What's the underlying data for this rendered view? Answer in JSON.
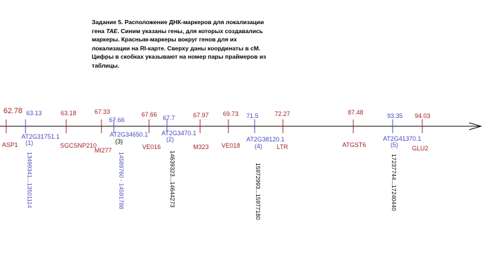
{
  "caption": {
    "part1": "Задание 5. Расположение ДНК-маркеров для локализации гена ",
    "gene": "TAE",
    "part2": ". Синим указаны гены, для которых создавались маркеры. Красным-маркеры вокруг генов для их локализации на RI-карте. Сверху даны координаты в сМ. Цифры в скобках указывают на номер пары праймеров из таблицы."
  },
  "colors": {
    "red": "#a32228",
    "blue": "#4848c0",
    "black": "#000000"
  },
  "markers": [
    {
      "id": "asp1",
      "coord": "62.78",
      "name": "ASP1",
      "color": "red"
    },
    {
      "id": "at2g31751",
      "coord": "63.13",
      "name": "AT2G31751.1",
      "pair": "(1)",
      "range": "13499341...13501114",
      "color": "blue"
    },
    {
      "id": "sgcsnp210",
      "coord": "63.18",
      "name": "SGCSNP210",
      "color": "red"
    },
    {
      "id": "mi277",
      "coord": "67.33",
      "name": "MI277",
      "color": "red"
    },
    {
      "id": "at2g34650",
      "coord": "67.66",
      "name": "AT2G34650.1",
      "pair": "(3)",
      "range": "14589760 - 14591788",
      "color": "blue"
    },
    {
      "id": "ve016",
      "coord": "67.66",
      "name": "VE016",
      "color": "red"
    },
    {
      "id": "at2g3470",
      "coord": "67.7",
      "name": "AT2G3470.1",
      "pair": "(2)",
      "range": "14639323...14644273",
      "color": "blue"
    },
    {
      "id": "m323",
      "coord": "67.97",
      "name": "M323",
      "color": "red"
    },
    {
      "id": "ve018",
      "coord": "69.73",
      "name": "VE018",
      "color": "red"
    },
    {
      "id": "at2g38120",
      "coord": "71.5",
      "name": "AT2G38120.1",
      "pair": "(4)",
      "range": "15972993...15977180",
      "color": "blue"
    },
    {
      "id": "ltr",
      "coord": "72.27",
      "name": "LTR",
      "color": "red"
    },
    {
      "id": "atgst6",
      "coord": "87.48",
      "name": "ATGST6",
      "color": "red"
    },
    {
      "id": "at2g41370",
      "coord": "93.35",
      "name": "AT2G41370.1",
      "pair": "(5)",
      "range": "17237744...17240440",
      "color": "blue"
    },
    {
      "id": "glu2",
      "coord": "94.03",
      "name": "GLU2",
      "color": "red"
    }
  ]
}
